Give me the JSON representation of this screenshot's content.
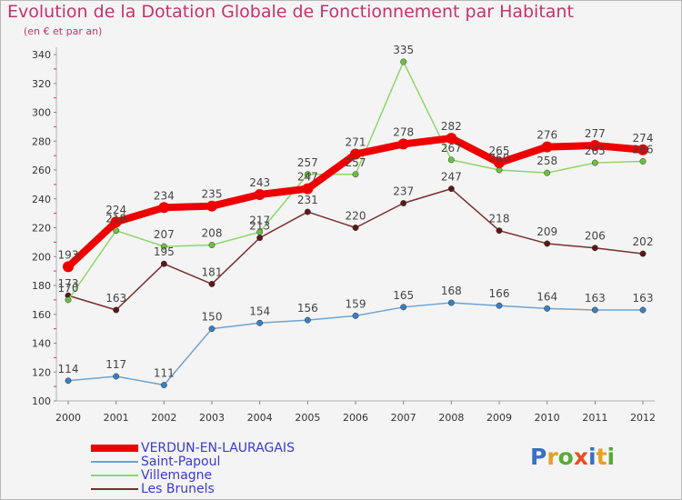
{
  "title": "Evolution de la Dotation Globale de Fonctionnement par Habitant",
  "subtitle": "(en € et par an)",
  "logo": {
    "text": "Proxiti",
    "letters": [
      "P",
      "r",
      "o",
      "x",
      "i",
      "t",
      "i"
    ],
    "colors": [
      "#3a6fc4",
      "#e8a020",
      "#5aaa3a",
      "#e85020",
      "#3a6fc4",
      "#e8a020",
      "#5aaa3a"
    ]
  },
  "chart_data": {
    "type": "line",
    "title": "Evolution de la Dotation Globale de Fonctionnement par Habitant",
    "x": [
      "2000",
      "2001",
      "2002",
      "2003",
      "2004",
      "2005",
      "2006",
      "2007",
      "2008",
      "2009",
      "2010",
      "2011",
      "2012"
    ],
    "ylim": [
      100,
      340
    ],
    "yticks": [
      100,
      120,
      140,
      160,
      180,
      200,
      220,
      240,
      260,
      280,
      300,
      320,
      340
    ],
    "grid": false,
    "legend_position": "bottom-left",
    "series": [
      {
        "name": "VERDUN-EN-LAURAGAIS",
        "values": [
          193,
          224,
          234,
          235,
          243,
          247,
          271,
          278,
          282,
          265,
          276,
          277,
          274
        ],
        "color": "#ee0000",
        "marker": "#ee0000"
      },
      {
        "name": "Saint-Papoul",
        "values": [
          114,
          117,
          111,
          150,
          154,
          156,
          159,
          165,
          168,
          166,
          164,
          163,
          163
        ],
        "color": "#6fa3cf",
        "marker": "#3a7fc0"
      },
      {
        "name": "Villemagne",
        "values": [
          170,
          218,
          207,
          208,
          217,
          257,
          257,
          335,
          267,
          260,
          258,
          265,
          266
        ],
        "color": "#8dd66a",
        "marker": "#6cc040"
      },
      {
        "name": "Les Brunels",
        "values": [
          173,
          163,
          195,
          181,
          213,
          231,
          220,
          237,
          247,
          218,
          209,
          206,
          202
        ],
        "color": "#7a2e2e",
        "marker": "#5a1818"
      }
    ]
  }
}
